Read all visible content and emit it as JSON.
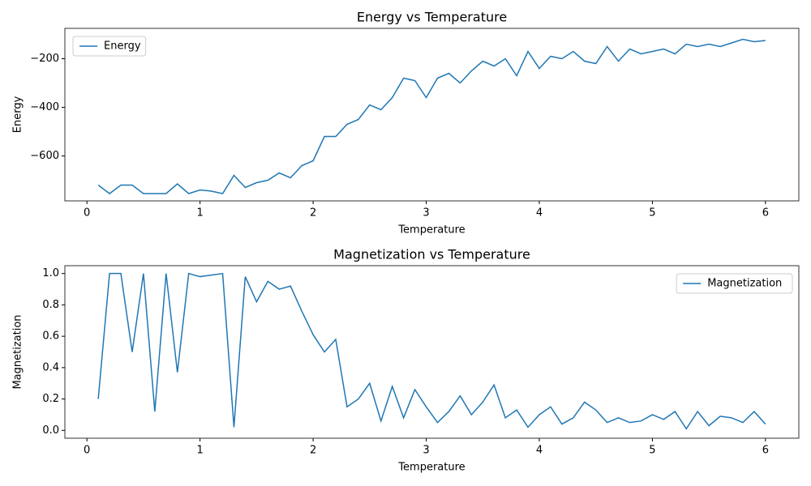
{
  "chart_data": [
    {
      "type": "line",
      "title": "Energy vs Temperature",
      "xlabel": "Temperature",
      "ylabel": "Energy",
      "x": [
        0.1,
        0.2,
        0.3,
        0.4,
        0.5,
        0.6,
        0.7,
        0.8,
        0.9,
        1.0,
        1.1,
        1.2,
        1.3,
        1.4,
        1.5,
        1.6,
        1.7,
        1.8,
        1.9,
        2.0,
        2.1,
        2.2,
        2.3,
        2.4,
        2.5,
        2.6,
        2.7,
        2.8,
        2.9,
        3.0,
        3.1,
        3.2,
        3.3,
        3.4,
        3.5,
        3.6,
        3.7,
        3.8,
        3.9,
        4.0,
        4.1,
        4.2,
        4.3,
        4.4,
        4.5,
        4.6,
        4.7,
        4.8,
        4.9,
        5.0,
        5.1,
        5.2,
        5.3,
        5.4,
        5.5,
        5.6,
        5.7,
        5.8,
        5.9,
        6.0
      ],
      "series": [
        {
          "name": "Energy",
          "color": "#1f77b4",
          "values": [
            -720,
            -755,
            -720,
            -720,
            -755,
            -755,
            -755,
            -715,
            -755,
            -740,
            -745,
            -755,
            -680,
            -730,
            -710,
            -700,
            -670,
            -690,
            -640,
            -620,
            -520,
            -520,
            -470,
            -450,
            -390,
            -410,
            -360,
            -280,
            -290,
            -360,
            -280,
            -260,
            -300,
            -250,
            -210,
            -230,
            -200,
            -270,
            -170,
            -240,
            -190,
            -200,
            -170,
            -210,
            -220,
            -150,
            -210,
            -160,
            -180,
            -170,
            -160,
            -180,
            -140,
            -150,
            -140,
            -150,
            -135,
            -120,
            -130,
            -125
          ]
        }
      ],
      "xlim": [
        -0.195,
        6.295
      ],
      "xticks": [
        0,
        1,
        2,
        3,
        4,
        5,
        6
      ],
      "ylim": [
        -785,
        -75
      ],
      "yticks": [
        {
          "value": -600,
          "label": "−600"
        },
        {
          "value": -400,
          "label": "−400"
        },
        {
          "value": -200,
          "label": "−200"
        }
      ],
      "legend": "upper left"
    },
    {
      "type": "line",
      "title": "Magnetization vs Temperature",
      "xlabel": "Temperature",
      "ylabel": "Magnetization",
      "x": [
        0.1,
        0.2,
        0.3,
        0.4,
        0.5,
        0.6,
        0.7,
        0.8,
        0.9,
        1.0,
        1.1,
        1.2,
        1.3,
        1.4,
        1.5,
        1.6,
        1.7,
        1.8,
        1.9,
        2.0,
        2.1,
        2.2,
        2.3,
        2.4,
        2.5,
        2.6,
        2.7,
        2.8,
        2.9,
        3.0,
        3.1,
        3.2,
        3.3,
        3.4,
        3.5,
        3.6,
        3.7,
        3.8,
        3.9,
        4.0,
        4.1,
        4.2,
        4.3,
        4.4,
        4.5,
        4.6,
        4.7,
        4.8,
        4.9,
        5.0,
        5.1,
        5.2,
        5.3,
        5.4,
        5.5,
        5.6,
        5.7,
        5.8,
        5.9,
        6.0
      ],
      "series": [
        {
          "name": "Magnetization",
          "color": "#1f77b4",
          "values": [
            0.2,
            1.0,
            1.0,
            0.5,
            1.0,
            0.12,
            1.0,
            0.37,
            1.0,
            0.98,
            0.99,
            1.0,
            0.02,
            0.98,
            0.82,
            0.95,
            0.9,
            0.92,
            0.76,
            0.61,
            0.5,
            0.58,
            0.15,
            0.2,
            0.3,
            0.06,
            0.28,
            0.08,
            0.26,
            0.15,
            0.05,
            0.12,
            0.22,
            0.1,
            0.18,
            0.29,
            0.08,
            0.13,
            0.02,
            0.1,
            0.15,
            0.04,
            0.08,
            0.18,
            0.13,
            0.05,
            0.08,
            0.05,
            0.06,
            0.1,
            0.07,
            0.12,
            0.01,
            0.12,
            0.03,
            0.09,
            0.08,
            0.05,
            0.12,
            0.04
          ]
        }
      ],
      "xlim": [
        -0.195,
        6.295
      ],
      "xticks": [
        0,
        1,
        2,
        3,
        4,
        5,
        6
      ],
      "ylim": [
        -0.05,
        1.05
      ],
      "yticks": [
        {
          "value": 0,
          "label": "0.0"
        },
        0.2,
        0.4,
        0.6,
        0.8,
        {
          "value": 1,
          "label": "1.0"
        }
      ],
      "legend": "upper right"
    }
  ]
}
